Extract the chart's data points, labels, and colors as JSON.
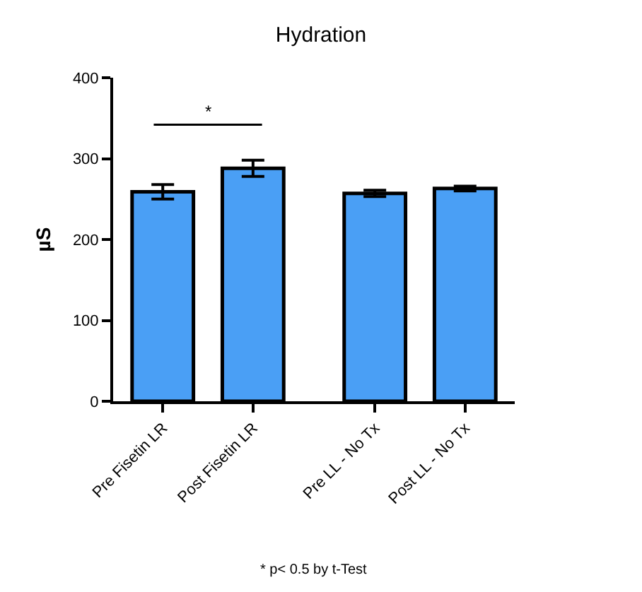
{
  "chart_data": {
    "type": "bar",
    "title": "Hydration",
    "ylabel": "µS",
    "categories": [
      "Pre Fisetin LR",
      "Post Fisetin LR",
      "Pre LL - No Tx",
      "Post LL - No Tx"
    ],
    "values": [
      259,
      288,
      257,
      263
    ],
    "errors": [
      9,
      10,
      4,
      3
    ],
    "color": "#4a9ff5",
    "ylim": [
      0,
      400
    ],
    "yticks": [
      0,
      100,
      200,
      300,
      400
    ],
    "grid": false,
    "annotations": [
      "*",
      "* p< 0.5 by t-Test"
    ]
  }
}
